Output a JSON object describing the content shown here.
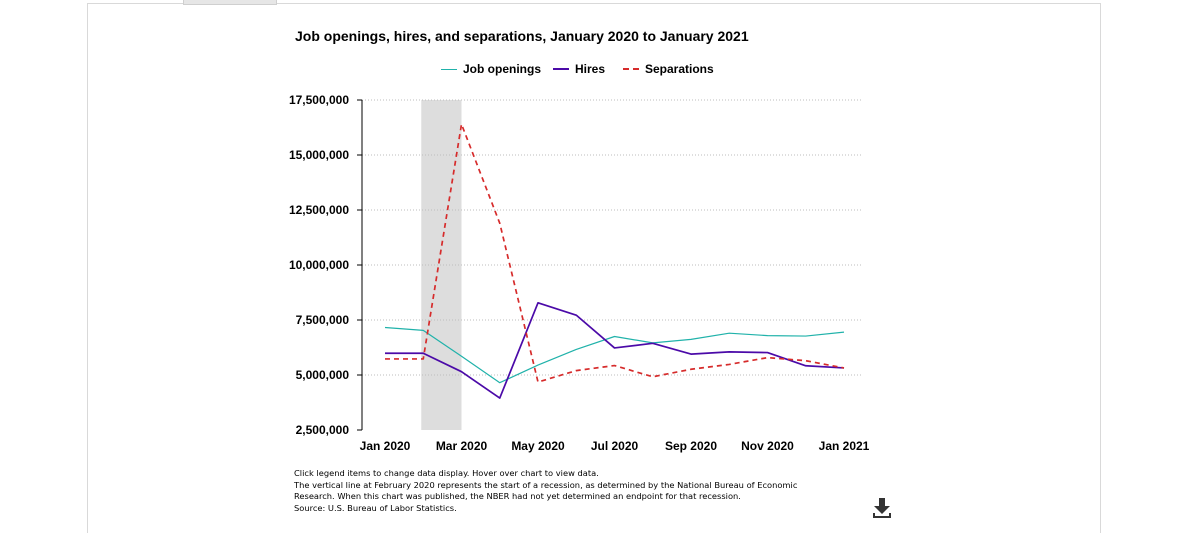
{
  "chart_data": {
    "type": "line",
    "title": "Job openings, hires, and separations, January 2020 to January 2021",
    "xlabel": "",
    "ylabel": "",
    "x": [
      "Jan 2020",
      "Feb 2020",
      "Mar 2020",
      "Apr 2020",
      "May 2020",
      "Jun 2020",
      "Jul 2020",
      "Aug 2020",
      "Sep 2020",
      "Oct 2020",
      "Nov 2020",
      "Dec 2020",
      "Jan 2021"
    ],
    "x_tick_labels": [
      "Jan 2020",
      "Mar 2020",
      "May 2020",
      "Jul 2020",
      "Sep 2020",
      "Nov 2020",
      "Jan 2021"
    ],
    "y_tick_labels": [
      "2,500,000",
      "5,000,000",
      "7,500,000",
      "10,000,000",
      "12,500,000",
      "15,000,000",
      "17,500,000"
    ],
    "ylim": [
      2500000,
      17500000
    ],
    "grid": true,
    "legend_position": "top",
    "recession_shading": {
      "from": "Feb 2020",
      "to": "Mar 2020"
    },
    "series": [
      {
        "name": "Job openings",
        "style": "solid",
        "color": "#20b2aa",
        "values": [
          7160000,
          7030000,
          5850000,
          4650000,
          5450000,
          6160000,
          6750000,
          6460000,
          6620000,
          6900000,
          6790000,
          6770000,
          6950000
        ]
      },
      {
        "name": "Hires",
        "style": "solid",
        "color": "#4b0aa8",
        "values": [
          5990000,
          5990000,
          5150000,
          3950000,
          8280000,
          7720000,
          6230000,
          6440000,
          5950000,
          6050000,
          6020000,
          5420000,
          5320000
        ]
      },
      {
        "name": "Separations",
        "style": "dashed",
        "color": "#d62b2b",
        "values": [
          5730000,
          5730000,
          16400000,
          11900000,
          4680000,
          5200000,
          5430000,
          4920000,
          5260000,
          5480000,
          5790000,
          5650000,
          5320000
        ]
      }
    ]
  },
  "notes": [
    "Click legend items to change data display. Hover over chart to view data.",
    "The vertical line at February 2020 represents the start of a recession, as determined by the National Bureau of Economic",
    "Research. When this chart was published, the NBER had not yet determined an endpoint for that recession.",
    "Source: U.S. Bureau of Labor Statistics."
  ],
  "icons": {
    "download": "download-icon"
  }
}
